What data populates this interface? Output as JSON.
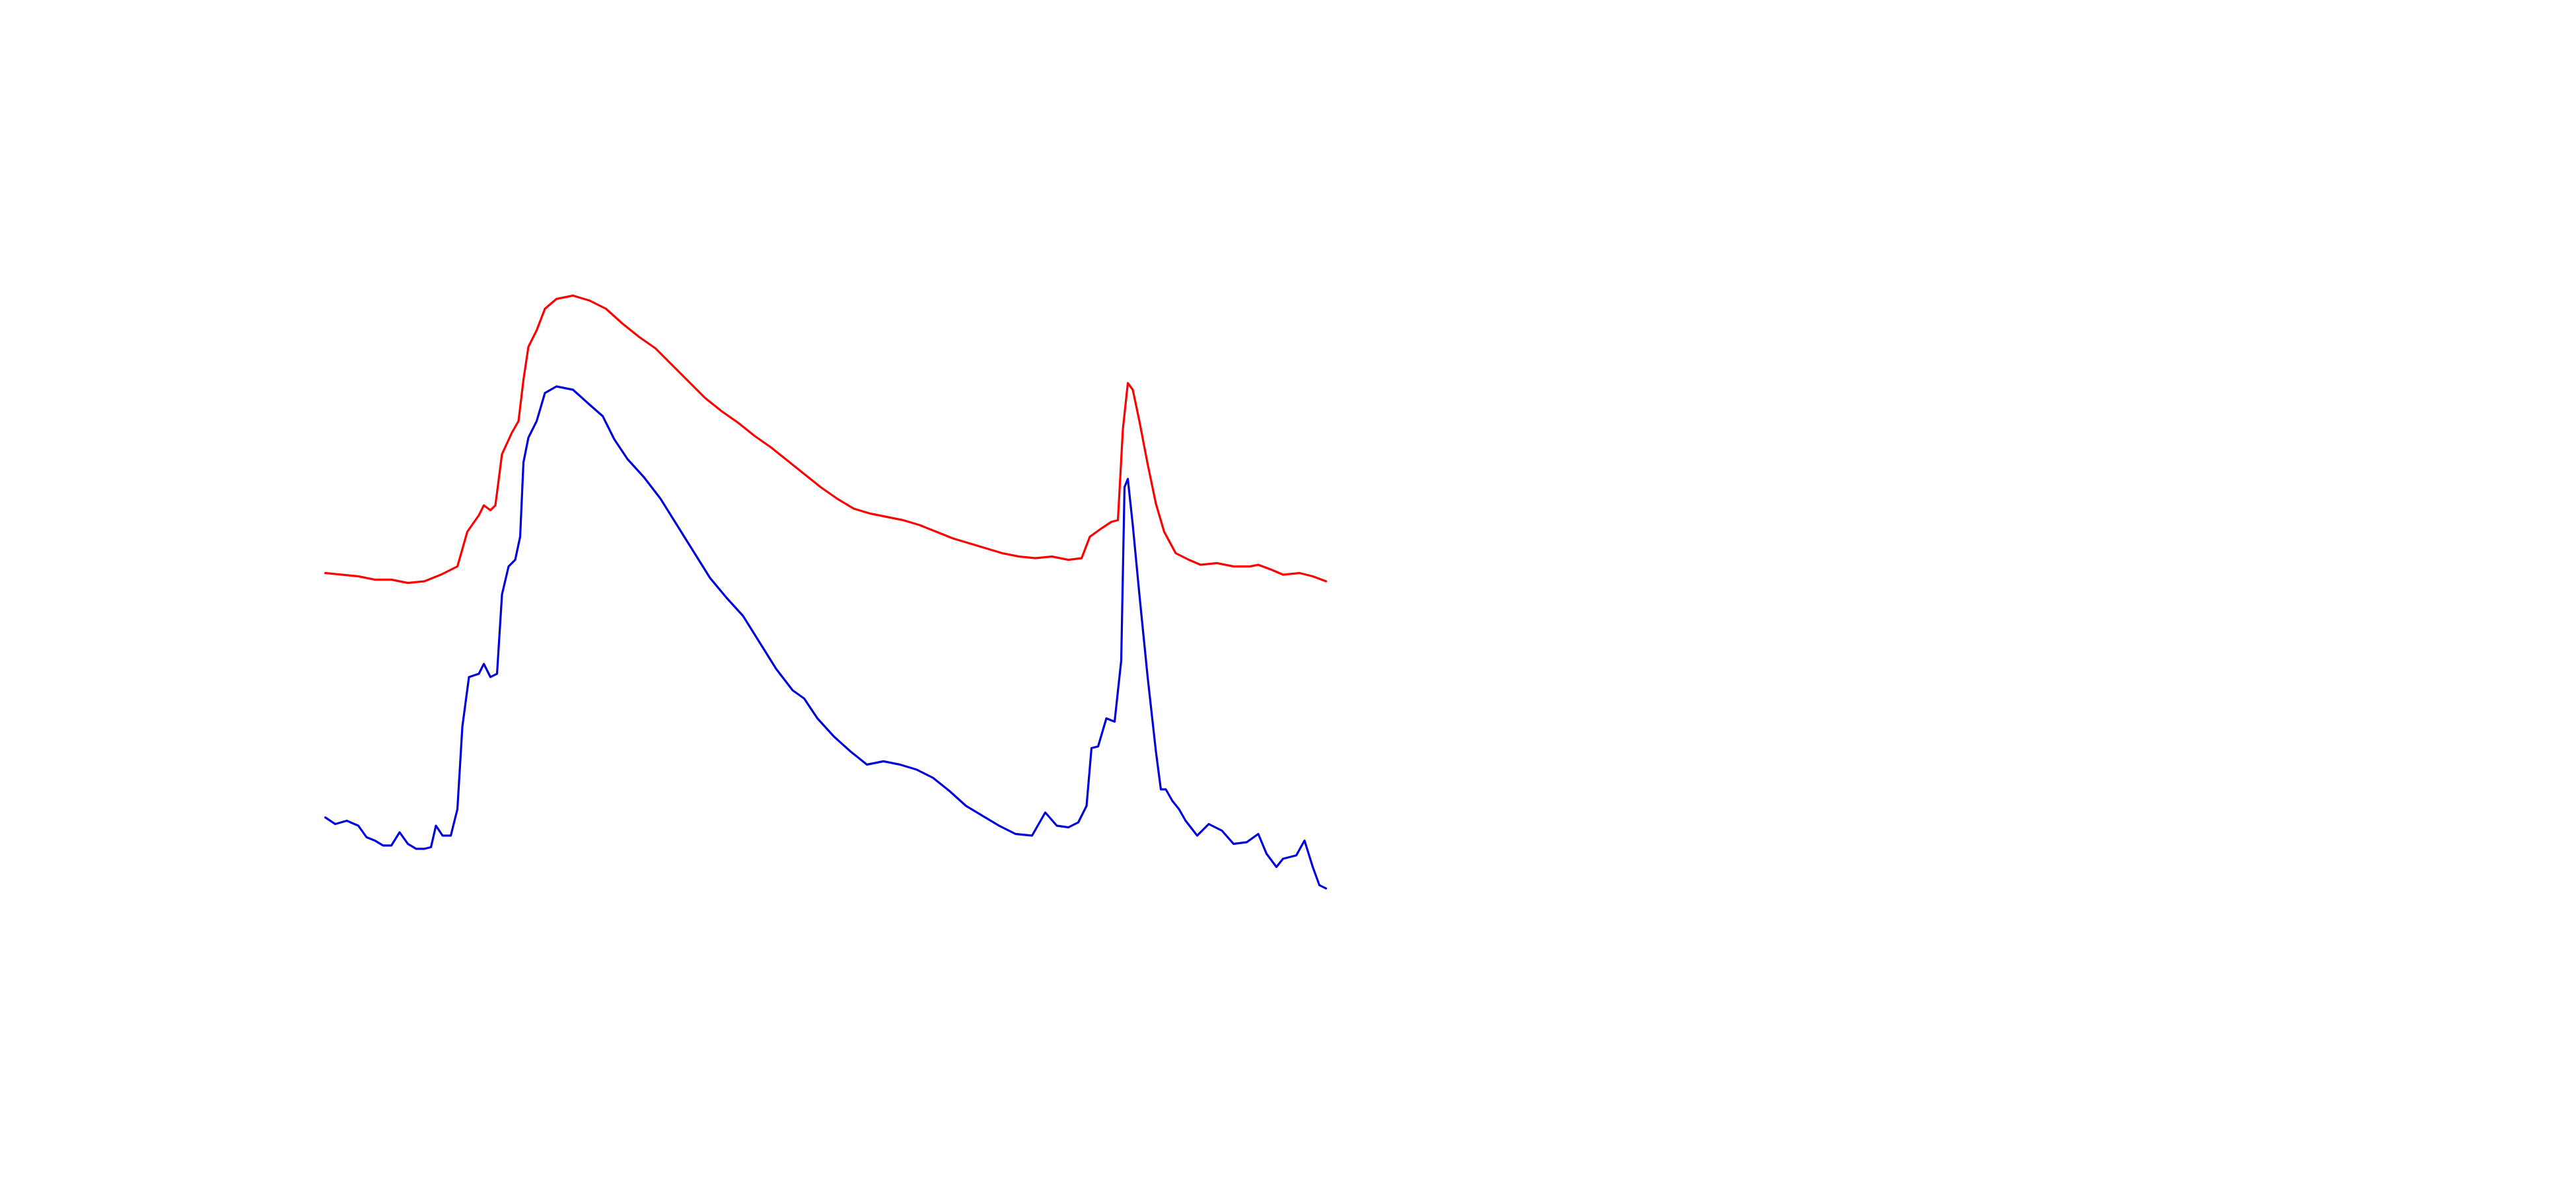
{
  "chart_data": {
    "type": "line",
    "xlim": [
      0,
      1560
    ],
    "ylim": [
      0,
      720
    ],
    "grid": false,
    "series": [
      {
        "color": "#ff0000",
        "x": [
          197,
          207,
          217,
          227,
          237,
          247,
          257,
          267,
          277,
          283,
          290,
          293,
          297,
          300,
          304,
          310,
          314,
          317,
          320,
          325,
          330,
          337,
          347,
          357,
          367,
          377,
          387,
          397,
          407,
          417,
          427,
          437,
          447,
          457,
          467,
          477,
          487,
          497,
          507,
          517,
          527,
          537,
          547,
          557,
          567,
          577,
          587,
          597,
          607,
          617,
          627,
          637,
          647,
          655,
          660,
          667,
          673,
          677,
          680,
          683,
          686,
          690,
          695,
          700,
          705,
          712,
          720,
          727,
          737,
          747,
          757,
          762,
          770,
          777,
          787,
          795,
          803
        ],
        "values": [
          373,
          372,
          371,
          369,
          369,
          367,
          368,
          372,
          377,
          398,
          408,
          414,
          411,
          414,
          445,
          458,
          465,
          490,
          510,
          520,
          533,
          539,
          541,
          538,
          533,
          524,
          516,
          509,
          499,
          489,
          479,
          471,
          464,
          456,
          449,
          441,
          433,
          425,
          418,
          412,
          409,
          407,
          405,
          402,
          398,
          394,
          391,
          388,
          385,
          383,
          382,
          383,
          381,
          382,
          395,
          400,
          404,
          405,
          460,
          488,
          484,
          465,
          439,
          415,
          398,
          385,
          381,
          378,
          379,
          377,
          377,
          378,
          375,
          372,
          373,
          371,
          368
        ]
      },
      {
        "color": "#0000dd",
        "x": [
          197,
          203,
          210,
          217,
          222,
          227,
          232,
          237,
          242,
          247,
          252,
          257,
          261,
          264,
          268,
          273,
          277,
          280,
          284,
          290,
          293,
          297,
          301,
          304,
          308,
          312,
          315,
          317,
          320,
          325,
          330,
          337,
          347,
          357,
          365,
          372,
          380,
          390,
          400,
          410,
          420,
          430,
          440,
          450,
          460,
          470,
          480,
          487,
          495,
          505,
          515,
          525,
          535,
          545,
          555,
          565,
          575,
          585,
          595,
          605,
          615,
          625,
          633,
          640,
          647,
          653,
          658,
          661,
          665,
          670,
          675,
          679,
          681,
          683,
          686,
          690,
          695,
          700,
          703,
          706,
          710,
          714,
          718,
          725,
          732,
          740,
          747,
          755,
          762,
          767,
          773,
          777,
          785,
          790,
          795,
          799,
          803
        ],
        "values": [
          225,
          221,
          223,
          220,
          213,
          211,
          208,
          208,
          216,
          209,
          206,
          206,
          207,
          220,
          214,
          214,
          230,
          280,
          310,
          312,
          318,
          310,
          312,
          360,
          377,
          381,
          395,
          440,
          455,
          465,
          482,
          486,
          484,
          475,
          468,
          454,
          442,
          431,
          418,
          402,
          386,
          370,
          358,
          347,
          331,
          315,
          302,
          297,
          285,
          274,
          265,
          257,
          259,
          257,
          254,
          249,
          241,
          232,
          226,
          220,
          215,
          214,
          228,
          220,
          219,
          222,
          232,
          267,
          268,
          285,
          283,
          320,
          425,
          430,
          402,
          360,
          310,
          265,
          242,
          242,
          235,
          230,
          223,
          214,
          221,
          217,
          209,
          210,
          215,
          203,
          195,
          200,
          202,
          211,
          195,
          184,
          182
        ]
      }
    ]
  }
}
